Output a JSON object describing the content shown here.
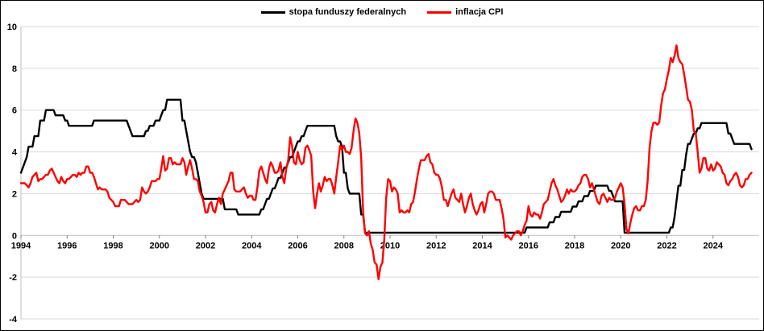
{
  "chart_data": {
    "type": "line",
    "title": "",
    "xlabel": "",
    "ylabel": "",
    "ylim": [
      -4,
      10
    ],
    "y_ticks": [
      10,
      8,
      6,
      4,
      2,
      0,
      -2,
      -4
    ],
    "x_domain": [
      1994,
      2026
    ],
    "x_start_year": 1994,
    "x_tick_years": [
      1994,
      1996,
      1998,
      2000,
      2002,
      2004,
      2006,
      2008,
      2010,
      2012,
      2014,
      2016,
      2018,
      2020,
      2022,
      2024
    ],
    "grid": true,
    "legend_position": "top",
    "frequency": "monthly",
    "series": [
      {
        "name": "stopa funduszy federalnych",
        "color": "#000000",
        "values": [
          3,
          3.25,
          3.5,
          3.75,
          4.25,
          4.25,
          4.25,
          4.75,
          4.75,
          4.75,
          5.5,
          5.5,
          5.5,
          6,
          6,
          6,
          6,
          6,
          5.75,
          5.75,
          5.75,
          5.75,
          5.75,
          5.5,
          5.5,
          5.25,
          5.25,
          5.25,
          5.25,
          5.25,
          5.25,
          5.25,
          5.25,
          5.25,
          5.25,
          5.25,
          5.25,
          5.25,
          5.5,
          5.5,
          5.5,
          5.5,
          5.5,
          5.5,
          5.5,
          5.5,
          5.5,
          5.5,
          5.5,
          5.5,
          5.5,
          5.5,
          5.5,
          5.5,
          5.5,
          5.5,
          5.25,
          5,
          4.75,
          4.75,
          4.75,
          4.75,
          4.75,
          4.75,
          4.75,
          5,
          5,
          5.25,
          5.25,
          5.25,
          5.5,
          5.5,
          5.5,
          5.75,
          6,
          6,
          6.5,
          6.5,
          6.5,
          6.5,
          6.5,
          6.5,
          6.5,
          6.5,
          5.5,
          5.5,
          5,
          4.5,
          4,
          3.75,
          3.75,
          3.5,
          3,
          2.5,
          2,
          1.75,
          1.75,
          1.75,
          1.75,
          1.75,
          1.75,
          1.75,
          1.75,
          1.75,
          1.75,
          1.75,
          1.25,
          1.25,
          1.25,
          1.25,
          1.25,
          1.25,
          1.25,
          1,
          1,
          1,
          1,
          1,
          1,
          1,
          1,
          1,
          1,
          1,
          1,
          1.25,
          1.25,
          1.5,
          1.75,
          1.75,
          2,
          2.25,
          2.25,
          2.5,
          2.75,
          2.75,
          3,
          3.25,
          3.25,
          3.5,
          3.75,
          3.75,
          4,
          4.25,
          4.5,
          4.5,
          4.75,
          4.75,
          5,
          5.25,
          5.25,
          5.25,
          5.25,
          5.25,
          5.25,
          5.25,
          5.25,
          5.25,
          5.25,
          5.25,
          5.25,
          5.25,
          5.25,
          5.25,
          4.75,
          4.5,
          4.5,
          4.25,
          3,
          3,
          2.25,
          2,
          2,
          2,
          2,
          2,
          2,
          1,
          1,
          0.13,
          0.13,
          0.13,
          0.13,
          0.13,
          0.13,
          0.13,
          0.13,
          0.13,
          0.13,
          0.13,
          0.13,
          0.13,
          0.13,
          0.13,
          0.13,
          0.13,
          0.13,
          0.13,
          0.13,
          0.13,
          0.13,
          0.13,
          0.13,
          0.13,
          0.13,
          0.13,
          0.13,
          0.13,
          0.13,
          0.13,
          0.13,
          0.13,
          0.13,
          0.13,
          0.13,
          0.13,
          0.13,
          0.13,
          0.13,
          0.13,
          0.13,
          0.13,
          0.13,
          0.13,
          0.13,
          0.13,
          0.13,
          0.13,
          0.13,
          0.13,
          0.13,
          0.13,
          0.13,
          0.13,
          0.13,
          0.13,
          0.13,
          0.13,
          0.13,
          0.13,
          0.13,
          0.13,
          0.13,
          0.13,
          0.13,
          0.13,
          0.13,
          0.13,
          0.13,
          0.13,
          0.13,
          0.13,
          0.13,
          0.13,
          0.13,
          0.13,
          0.13,
          0.13,
          0.13,
          0.13,
          0.13,
          0.13,
          0.13,
          0.38,
          0.38,
          0.38,
          0.38,
          0.38,
          0.38,
          0.38,
          0.38,
          0.38,
          0.38,
          0.38,
          0.38,
          0.63,
          0.63,
          0.63,
          0.88,
          0.88,
          0.88,
          1.13,
          1.13,
          1.13,
          1.13,
          1.13,
          1.13,
          1.38,
          1.38,
          1.38,
          1.63,
          1.63,
          1.63,
          1.88,
          1.88,
          1.88,
          2.13,
          2.13,
          2.13,
          2.38,
          2.38,
          2.38,
          2.38,
          2.38,
          2.38,
          2.38,
          2.13,
          2.13,
          1.88,
          1.63,
          1.63,
          1.63,
          1.63,
          1.63,
          0.13,
          0.13,
          0.13,
          0.13,
          0.13,
          0.13,
          0.13,
          0.13,
          0.13,
          0.13,
          0.13,
          0.13,
          0.13,
          0.13,
          0.13,
          0.13,
          0.13,
          0.13,
          0.13,
          0.13,
          0.13,
          0.13,
          0.13,
          0.13,
          0.38,
          0.38,
          0.88,
          1.63,
          2.38,
          2.38,
          3.13,
          3.13,
          3.88,
          4.38,
          4.38,
          4.63,
          4.88,
          4.88,
          5.13,
          5.13,
          5.38,
          5.38,
          5.38,
          5.38,
          5.38,
          5.38,
          5.38,
          5.38,
          5.38,
          5.38,
          5.38,
          5.38,
          5.38,
          5.38,
          4.88,
          4.88,
          4.63,
          4.38,
          4.38,
          4.38,
          4.38,
          4.38,
          4.38,
          4.38,
          4.38,
          4.38,
          4.13
        ]
      },
      {
        "name": "inflacja CPI",
        "color": "#ff0000",
        "values": [
          2.5,
          2.5,
          2.5,
          2.4,
          2.3,
          2.5,
          2.8,
          2.9,
          3,
          2.6,
          2.7,
          2.7,
          2.8,
          2.9,
          2.9,
          3.1,
          3.2,
          3,
          2.8,
          2.6,
          2.5,
          2.8,
          2.6,
          2.5,
          2.7,
          2.7,
          2.8,
          2.9,
          2.9,
          2.8,
          3,
          2.9,
          3,
          3,
          3.3,
          3.3,
          3,
          3,
          2.8,
          2.5,
          2.2,
          2.3,
          2.2,
          2.2,
          2.2,
          2.1,
          1.8,
          1.7,
          1.6,
          1.4,
          1.4,
          1.4,
          1.7,
          1.7,
          1.7,
          1.6,
          1.5,
          1.5,
          1.5,
          1.6,
          1.7,
          1.6,
          1.7,
          2.3,
          2.1,
          2,
          2.1,
          2.3,
          2.6,
          2.6,
          2.6,
          2.7,
          2.7,
          3.2,
          3.8,
          3.1,
          3.2,
          3.7,
          3.7,
          3.4,
          3.5,
          3.4,
          3.4,
          3.4,
          3.7,
          3.5,
          2.9,
          3.3,
          3.6,
          3.2,
          2.7,
          2.7,
          2.6,
          2.1,
          1.9,
          1.6,
          1.1,
          1.1,
          1.5,
          1.6,
          1.2,
          1.1,
          1.5,
          1.8,
          1.5,
          2,
          2.2,
          2.4,
          2.6,
          3,
          3,
          2.2,
          2.1,
          2.1,
          2.1,
          2.2,
          2.3,
          2,
          1.8,
          1.9,
          1.9,
          1.7,
          1.7,
          2.3,
          3.1,
          3.3,
          3,
          2.7,
          2.5,
          3.2,
          3.5,
          3.3,
          3,
          3,
          3.1,
          3.5,
          2.8,
          2.5,
          3.2,
          3.6,
          4.7,
          4.3,
          3.5,
          3.4,
          4,
          3.6,
          3.4,
          3.5,
          4.2,
          4.3,
          4.1,
          3.8,
          2.1,
          1.3,
          2,
          2.5,
          2.1,
          2.4,
          2.8,
          2.6,
          2.7,
          2.7,
          2.4,
          2,
          2.8,
          3.5,
          4.3,
          4.1,
          4.3,
          4,
          4,
          3.9,
          4.2,
          5,
          5.6,
          5.4,
          4.9,
          3.7,
          1.1,
          0.1,
          0,
          0.2,
          -0.4,
          -0.7,
          -1.3,
          -1.4,
          -2.1,
          -1.5,
          -1.3,
          -0.2,
          1.8,
          2.7,
          2.6,
          2.1,
          2.3,
          2.2,
          2,
          1.1,
          1.2,
          1.1,
          1.1,
          1.2,
          1.1,
          1.5,
          1.6,
          2.1,
          2.7,
          3.2,
          3.6,
          3.6,
          3.6,
          3.8,
          3.9,
          3.5,
          3.4,
          3,
          2.9,
          2.9,
          2.7,
          2.3,
          1.7,
          1.7,
          1.4,
          1.7,
          2,
          2.2,
          1.8,
          1.7,
          1.6,
          2,
          1.5,
          1.1,
          1.4,
          1.8,
          2,
          1.5,
          1.2,
          1,
          1.2,
          1.5,
          1.6,
          1.1,
          1.5,
          2,
          2.1,
          2.1,
          2,
          1.7,
          1.7,
          1.7,
          1.3,
          0.8,
          -0.1,
          0,
          -0.1,
          -0.2,
          0,
          0.1,
          0.2,
          0.2,
          0,
          0.2,
          0.5,
          0.7,
          1.4,
          1,
          0.9,
          1.1,
          1,
          1,
          0.8,
          1.1,
          1.5,
          1.6,
          1.7,
          2.1,
          2.5,
          2.7,
          2.4,
          2.2,
          1.9,
          1.6,
          1.7,
          1.9,
          2.2,
          2,
          2.2,
          2.1,
          2.1,
          2.2,
          2.4,
          2.5,
          2.8,
          2.9,
          2.9,
          2.7,
          2.3,
          2.5,
          2.2,
          1.9,
          1.6,
          1.5,
          1.9,
          2,
          1.8,
          1.6,
          1.8,
          1.7,
          1.7,
          1.8,
          2.1,
          2.3,
          2.5,
          2.3,
          1.5,
          0.3,
          0.1,
          0.6,
          1,
          1.3,
          1.4,
          1.2,
          1.2,
          1.4,
          1.4,
          1.7,
          2.6,
          4.2,
          5,
          5.4,
          5.4,
          5.3,
          5.4,
          6.2,
          6.8,
          7,
          7.5,
          7.9,
          8.5,
          8.3,
          8.6,
          9.1,
          8.5,
          8.3,
          8.2,
          7.7,
          7.1,
          6.5,
          6.4,
          6,
          5,
          4.9,
          4,
          3,
          3.2,
          3.7,
          3.7,
          3.2,
          3.1,
          3.4,
          3.1,
          3.2,
          3.5,
          3.4,
          3.3,
          3,
          2.9,
          2.5,
          2.4,
          2.6,
          2.7,
          2.9,
          3,
          2.8,
          2.4,
          2.3,
          2.4,
          2.7,
          2.7,
          2.9,
          3
        ]
      }
    ]
  }
}
